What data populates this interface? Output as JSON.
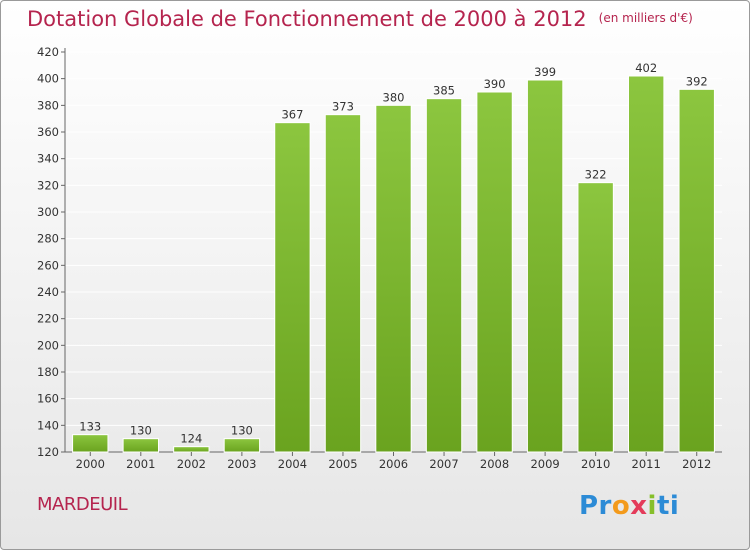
{
  "chart_data": {
    "type": "bar",
    "title": "Dotation Globale de Fonctionnement de 2000 à 2012",
    "subtitle": "(en milliers d'€)",
    "categories": [
      "2000",
      "2001",
      "2002",
      "2003",
      "2004",
      "2005",
      "2006",
      "2007",
      "2008",
      "2009",
      "2010",
      "2011",
      "2012"
    ],
    "values": [
      133,
      130,
      124,
      130,
      367,
      373,
      380,
      385,
      390,
      399,
      322,
      402,
      392
    ],
    "ylim": [
      120,
      420
    ],
    "yticks": [
      120,
      140,
      160,
      180,
      200,
      220,
      240,
      260,
      280,
      300,
      320,
      340,
      360,
      380,
      400,
      420
    ],
    "grid": true,
    "bar_color": "#8cc63f",
    "bar_color_dark": "#6aa31f",
    "title_color": "#b5244e"
  },
  "footer": {
    "commune": "MARDEUIL",
    "logo": {
      "l1": "Pr",
      "l2": "o",
      "l3": "x",
      "l4": "i",
      "l5": "ti"
    }
  }
}
